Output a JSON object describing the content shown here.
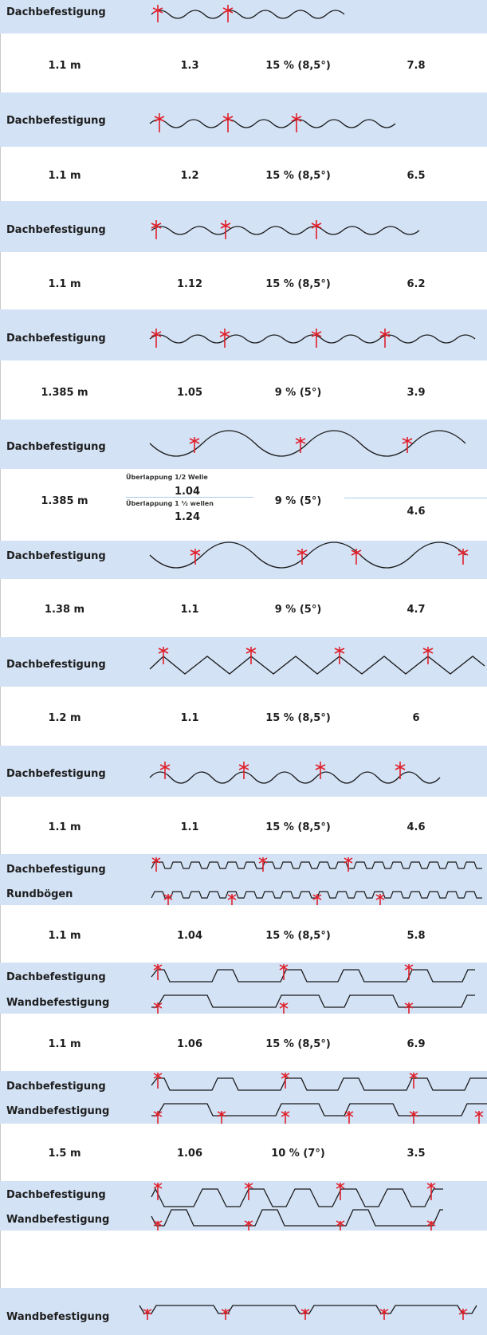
{
  "profiles": [
    {
      "labels": [
        "Dachbefestigung"
      ],
      "values": [
        "1.1 m",
        "1.3",
        "15 % (8,5°)",
        "7.8"
      ]
    },
    {
      "labels": [
        "Dachbefestigung"
      ],
      "values": [
        "1.1 m",
        "1.2",
        "15 % (8,5°)",
        "6.5"
      ]
    },
    {
      "labels": [
        "Dachbefestigung"
      ],
      "values": [
        "1.1 m",
        "1.12",
        "15 % (8,5°)",
        "6.2"
      ]
    },
    {
      "labels": [
        "Dachbefestigung"
      ],
      "values": [
        "1.385 m",
        "1.05",
        "9 % (5°)",
        "3.9"
      ]
    },
    {
      "labels": [
        "Dachbefestigung"
      ],
      "values": [
        "1.385 m",
        "",
        "9 % (5°)",
        "4.6"
      ],
      "overlap": {
        "note1": "Überlappung 1/2 Welle",
        "value1": "1.04",
        "note2": "Überlappung 1 ½ wellen",
        "value2": "1.24"
      }
    },
    {
      "labels": [
        "Dachbefestigung"
      ],
      "values": [
        "1.38 m",
        "1.1",
        "9 % (5°)",
        "4.7"
      ]
    },
    {
      "labels": [
        "Dachbefestigung"
      ],
      "values": [
        "1.2 m",
        "1.1",
        "15 % (8,5°)",
        "6"
      ]
    },
    {
      "labels": [
        "Dachbefestigung"
      ],
      "values": [
        "1.1 m",
        "1.1",
        "15 % (8,5°)",
        "4.6"
      ]
    },
    {
      "labels": [
        "Dachbefestigung",
        "Rundbögen"
      ],
      "values": [
        "1.1 m",
        "1.04",
        "15 % (8,5°)",
        "5.8"
      ]
    },
    {
      "labels": [
        "Dachbefestigung",
        "Wandbefestigung"
      ],
      "values": [
        "1.1 m",
        "1.06",
        "15 % (8,5°)",
        "6.9"
      ]
    },
    {
      "labels": [
        "Dachbefestigung",
        "Wandbefestigung"
      ],
      "values": [
        "1.5 m",
        "1.06",
        "10 % (7°)",
        "3.5"
      ]
    },
    {
      "labels": [
        "Dachbefestigung",
        "Wandbefestigung"
      ],
      "values": []
    },
    {
      "labels": [
        "Wandbefestigung"
      ],
      "values": []
    }
  ],
  "colors": {
    "band": "#d3e2f5",
    "fastener": "#e0202a",
    "profile": "#1a1a1a"
  }
}
